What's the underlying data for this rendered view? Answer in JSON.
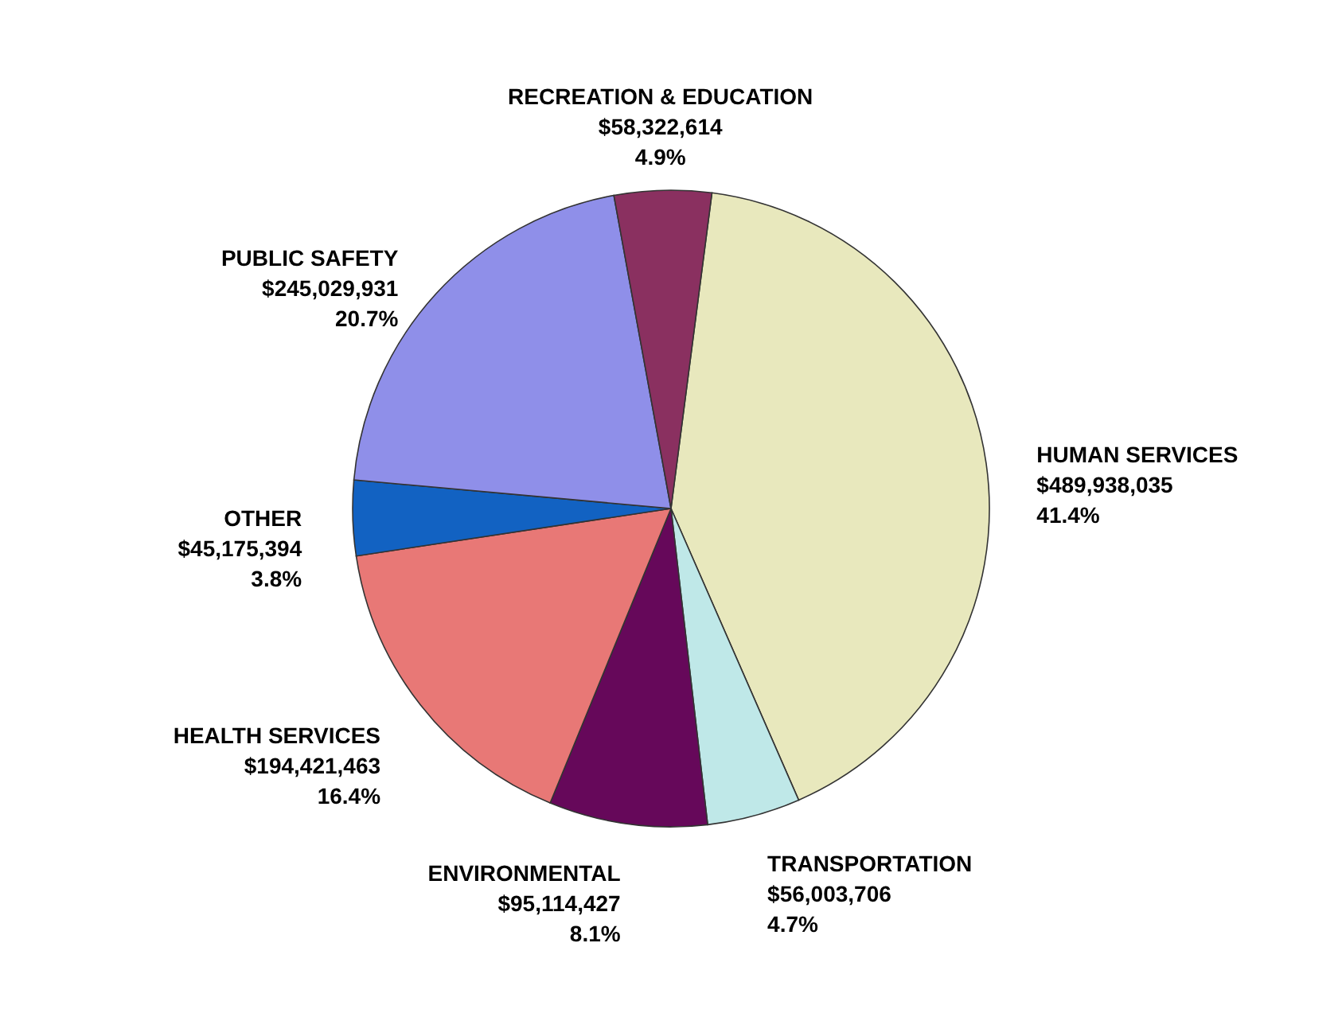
{
  "chart_data": {
    "type": "pie",
    "categories": [
      "HUMAN SERVICES",
      "TRANSPORTATION",
      "ENVIRONMENTAL",
      "HEALTH SERVICES",
      "OTHER",
      "PUBLIC SAFETY",
      "RECREATION & EDUCATION"
    ],
    "values": [
      489938035,
      56003706,
      95114427,
      194421463,
      45175394,
      245029931,
      58322614
    ],
    "value_labels": [
      "$489,938,035\n41.4%",
      "$56,003,706\n4.7%",
      "$95,114,427\n8.1%",
      "$194,421,463\n16.4%",
      "$45,175,394\n3.8%",
      "$245,029,931\n20.7%",
      "$58,322,614\n4.9%"
    ],
    "colors": [
      "#e8e8bd",
      "#bfe8e8",
      "#66085a",
      "#e87876",
      "#1262c2",
      "#8f8fe9",
      "#8a3060"
    ],
    "legend": false
  }
}
